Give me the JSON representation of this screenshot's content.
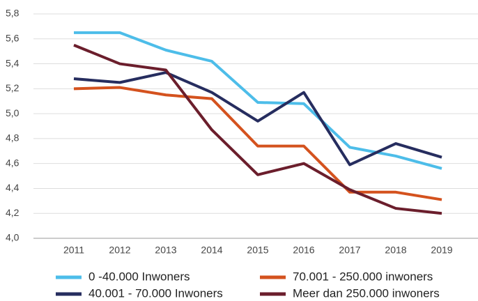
{
  "chart_data": {
    "type": "line",
    "categories": [
      "2011",
      "2012",
      "2013",
      "2014",
      "2015",
      "2016",
      "2017",
      "2018",
      "2019"
    ],
    "series": [
      {
        "name": "0 -40.000 Inwoners",
        "color": "#4dbde9",
        "values": [
          5.65,
          5.65,
          5.51,
          5.42,
          5.09,
          5.08,
          4.73,
          4.66,
          4.56
        ]
      },
      {
        "name": "40.001 - 70.000 Inwoners",
        "color": "#262d5f",
        "values": [
          5.28,
          5.25,
          5.33,
          5.17,
          4.94,
          5.17,
          4.59,
          4.76,
          4.65
        ]
      },
      {
        "name": "70.001 - 250.000 inwoners",
        "color": "#d4521e",
        "values": [
          5.2,
          5.21,
          5.15,
          5.12,
          4.74,
          4.74,
          4.37,
          4.37,
          4.31
        ]
      },
      {
        "name": "Meer dan 250.000 inwoners",
        "color": "#6b1e2c",
        "values": [
          5.55,
          5.4,
          5.35,
          4.87,
          4.51,
          4.6,
          4.39,
          4.24,
          4.2
        ]
      }
    ],
    "ylim": [
      4.0,
      5.8
    ],
    "yticks": [
      {
        "value": 4.0,
        "label": "4,0"
      },
      {
        "value": 4.2,
        "label": "4,2"
      },
      {
        "value": 4.4,
        "label": "4,4"
      },
      {
        "value": 4.6,
        "label": "4,6"
      },
      {
        "value": 4.8,
        "label": "4,8"
      },
      {
        "value": 5.0,
        "label": "5,0"
      },
      {
        "value": 5.2,
        "label": "5,2"
      },
      {
        "value": 5.4,
        "label": "5,4"
      },
      {
        "value": 5.6,
        "label": "5,6"
      },
      {
        "value": 5.8,
        "label": "5,8"
      }
    ],
    "grid": true
  }
}
